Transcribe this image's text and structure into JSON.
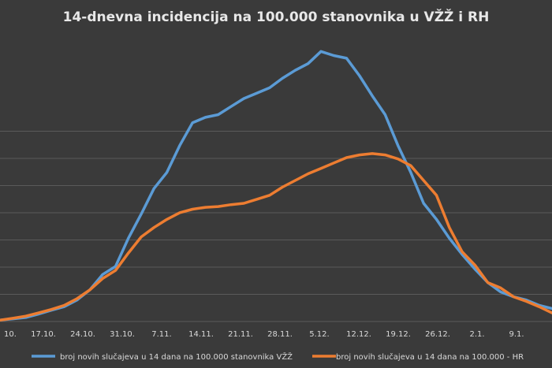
{
  "chart_data": {
    "type": "line",
    "title": "14-dnevna incidencija na 100.000 stanovnika u VŽŽ i RH",
    "xlabel": "",
    "ylabel": "",
    "x_ticks": [
      "10.",
      "17.10.",
      "24.10.",
      "31.10.",
      "7.11.",
      "14.11.",
      "21.11.",
      "28.11.",
      "5.12.",
      "12.12.",
      "19.12.",
      "26.12.",
      "2.1.",
      "9.1."
    ],
    "grid": true,
    "legend_position": "bottom",
    "series": [
      {
        "name": "broj novih slučajeva u 14 dana na 100.000 stanovnika VŽŽ",
        "color": "#5b9bd5",
        "values": [
          5,
          10,
          15,
          28,
          42,
          55,
          80,
          118,
          175,
          205,
          310,
          400,
          495,
          555,
          655,
          740,
          760,
          770,
          800,
          830,
          850,
          870,
          905,
          935,
          960,
          1005,
          990,
          980,
          915,
          840,
          770,
          655,
          555,
          440,
          380,
          310,
          250,
          195,
          145,
          110,
          92,
          80,
          60,
          48
        ]
      },
      {
        "name": "broj novih slučajeva u 14 dana na 100.000 - HR",
        "color": "#ed7d31",
        "values": [
          5,
          12,
          20,
          32,
          45,
          60,
          85,
          118,
          160,
          190,
          255,
          315,
          350,
          380,
          405,
          418,
          425,
          428,
          435,
          440,
          455,
          470,
          500,
          525,
          550,
          570,
          590,
          610,
          620,
          625,
          620,
          605,
          580,
          525,
          470,
          350,
          260,
          210,
          145,
          125,
          92,
          75,
          55,
          32
        ]
      }
    ],
    "ylim": [
      0,
      1050
    ]
  }
}
